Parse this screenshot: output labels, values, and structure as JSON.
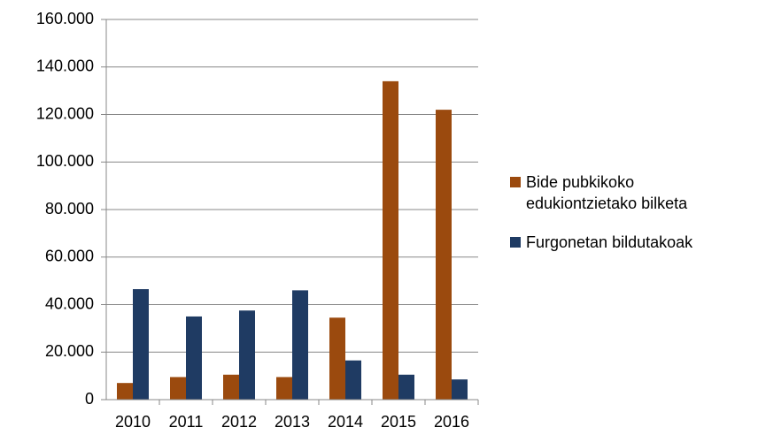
{
  "chart_data": {
    "type": "bar",
    "categories": [
      "2010",
      "2011",
      "2012",
      "2013",
      "2014",
      "2015",
      "2016"
    ],
    "series": [
      {
        "name": "Bide pubkikoko edukiontzietako bilketa",
        "color": "#9b4a0e",
        "values": [
          7000,
          9500,
          10500,
          9500,
          34500,
          134000,
          122000
        ]
      },
      {
        "name": "Furgonetan bildutakoak",
        "color": "#1f3b63",
        "values": [
          46500,
          35000,
          37500,
          46000,
          16500,
          10500,
          8500
        ]
      }
    ],
    "ylim": [
      0,
      160000
    ],
    "yticks": [
      0,
      {
        "value": 20000,
        "label": "20.000"
      },
      {
        "value": 40000,
        "label": "40.000"
      },
      {
        "value": 60000,
        "label": "60.000"
      },
      {
        "value": 80000,
        "label": "80.000"
      },
      {
        "value": 100000,
        "label": "100.000"
      },
      {
        "value": 120000,
        "label": "120.000"
      },
      {
        "value": 140000,
        "label": "140.000"
      },
      {
        "value": 160000,
        "label": "160.000"
      }
    ],
    "grid": true,
    "legend": "right"
  }
}
